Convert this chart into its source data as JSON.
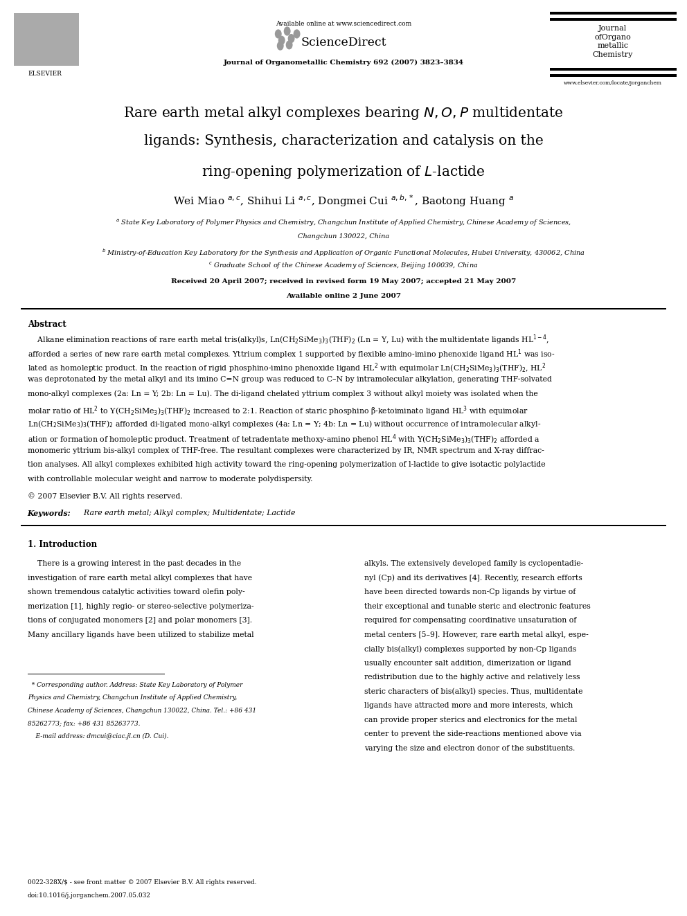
{
  "page_width": 9.92,
  "page_height": 13.23,
  "bg_color": "#ffffff",
  "header_online": "Available online at www.sciencedirect.com",
  "journal_line": "Journal of Organometallic Chemistry 692 (2007) 3823–3834",
  "journal_name": "Journal\nofOrgano\nmetallic\nChemistry",
  "website": "www.elsevier.com/locate/jorganchem",
  "title_l1": "Rare earth metal alkyl complexes bearing $\\mathit{N,O,P}$ multidentate",
  "title_l2": "ligands: Synthesis, characterization and catalysis on the",
  "title_l3": "ring-opening polymerization of $\\mathit{L}$-lactide",
  "authors": "Wei Miao $^{a,c}$, Shihui Li $^{a,c}$, Dongmei Cui $^{a,b,*}$, Baotong Huang $^{a}$",
  "affil_a": "$^{a}$ State Key Laboratory of Polymer Physics and Chemistry, Changchun Institute of Applied Chemistry, Chinese Academy of Sciences,",
  "affil_a2": "Changchun 130022, China",
  "affil_b": "$^{b}$ Ministry-of-Education Key Laboratory for the Synthesis and Application of Organic Functional Molecules, Hubei University, 430062, China",
  "affil_c": "$^{c}$ Graduate School of the Chinese Academy of Sciences, Beijing 100039, China",
  "received": "Received 20 April 2007; received in revised form 19 May 2007; accepted 21 May 2007",
  "available_online2": "Available online 2 June 2007",
  "abstract_title": "Abstract",
  "abs_l1": "    Alkane elimination reactions of rare earth metal tris(alkyl)s, Ln(CH$_2$SiMe$_3$)$_3$(THF)$_2$ (Ln = Y, Lu) with the multidentate ligands HL$^{1-4}$,",
  "abs_l2": "afforded a series of new rare earth metal complexes. Yttrium complex 1 supported by flexible amino-imino phenoxide ligand HL$^1$ was iso-",
  "abs_l3": "lated as homoleptic product. In the reaction of rigid phosphino-imino phenoxide ligand HL$^2$ with equimolar Ln(CH$_2$SiMe$_3$)$_3$(THF)$_2$, HL$^2$",
  "abs_l4": "was deprotonated by the metal alkyl and its imino C=N group was reduced to C–N by intramolecular alkylation, generating THF-solvated",
  "abs_l5": "mono-alkyl complexes (2a: Ln = Y; 2b: Ln = Lu). The di-ligand chelated yttrium complex 3 without alkyl moiety was isolated when the",
  "abs_l6": "molar ratio of HL$^2$ to Y(CH$_2$SiMe$_3$)$_3$(THF)$_2$ increased to 2:1. Reaction of staric phosphino β-ketoiminato ligand HL$^3$ with equimolar",
  "abs_l7": "Ln(CH$_2$SiMe$_3$)$_3$(THF)$_2$ afforded di-ligated mono-alkyl complexes (4a: Ln = Y; 4b: Ln = Lu) without occurrence of intramolecular alkyl-",
  "abs_l8": "ation or formation of homoleptic product. Treatment of tetradentate methoxy-amino phenol HL$^4$ with Y(CH$_2$SiMe$_3$)$_3$(THF)$_2$ afforded a",
  "abs_l9": "monomeric yttrium bis-alkyl complex of THF-free. The resultant complexes were characterized by IR, NMR spectrum and X-ray diffrac-",
  "abs_l10": "tion analyses. All alkyl complexes exhibited high activity toward the ring-opening polymerization of l-lactide to give isotactic polylactide",
  "abs_l11": "with controllable molecular weight and narrow to moderate polydispersity.",
  "copyright": "© 2007 Elsevier B.V. All rights reserved.",
  "kw_label": "Keywords:",
  "keywords": "  Rare earth metal; Alkyl complex; Multidentate; Lactide",
  "sec1_title": "1. Introduction",
  "col1_l1": "    There is a growing interest in the past decades in the",
  "col1_l2": "investigation of rare earth metal alkyl complexes that have",
  "col1_l3": "shown tremendous catalytic activities toward olefin poly-",
  "col1_l4": "merization [1], highly regio- or stereo-selective polymeriza-",
  "col1_l5": "tions of conjugated monomers [2] and polar monomers [3].",
  "col1_l6": "Many ancillary ligands have been utilized to stabilize metal",
  "col2_l1": "alkyls. The extensively developed family is cyclopentadie-",
  "col2_l2": "nyl (Cp) and its derivatives [4]. Recently, research efforts",
  "col2_l3": "have been directed towards non-Cp ligands by virtue of",
  "col2_l4": "their exceptional and tunable steric and electronic features",
  "col2_l5": "required for compensating coordinative unsaturation of",
  "col2_l6": "metal centers [5–9]. However, rare earth metal alkyl, espe-",
  "col2_l7": "cially bis(alkyl) complexes supported by non-Cp ligands",
  "col2_l8": "usually encounter salt addition, dimerization or ligand",
  "col2_l9": "redistribution due to the highly active and relatively less",
  "col2_l10": "steric characters of bis(alkyl) species. Thus, multidentate",
  "col2_l11": "ligands have attracted more and more interests, which",
  "col2_l12": "can provide proper sterics and electronics for the metal",
  "col2_l13": "center to prevent the side-reactions mentioned above via",
  "col2_l14": "varying the size and electron donor of the substituents.",
  "fn_line": "  * Corresponding author. Address: State Key Laboratory of Polymer",
  "fn_l2": "Physics and Chemistry, Changchun Institute of Applied Chemistry,",
  "fn_l3": "Chinese Academy of Sciences, Changchun 130022, China. Tel.: +86 431",
  "fn_l4": "85262773; fax: +86 431 85263773.",
  "fn_email": "    E-mail address: dmcui@ciac.jl.cn (D. Cui).",
  "footer_issn": "0022-328X/$ - see front matter © 2007 Elsevier B.V. All rights reserved.",
  "footer_doi": "doi:10.1016/j.jorganchem.2007.05.032"
}
